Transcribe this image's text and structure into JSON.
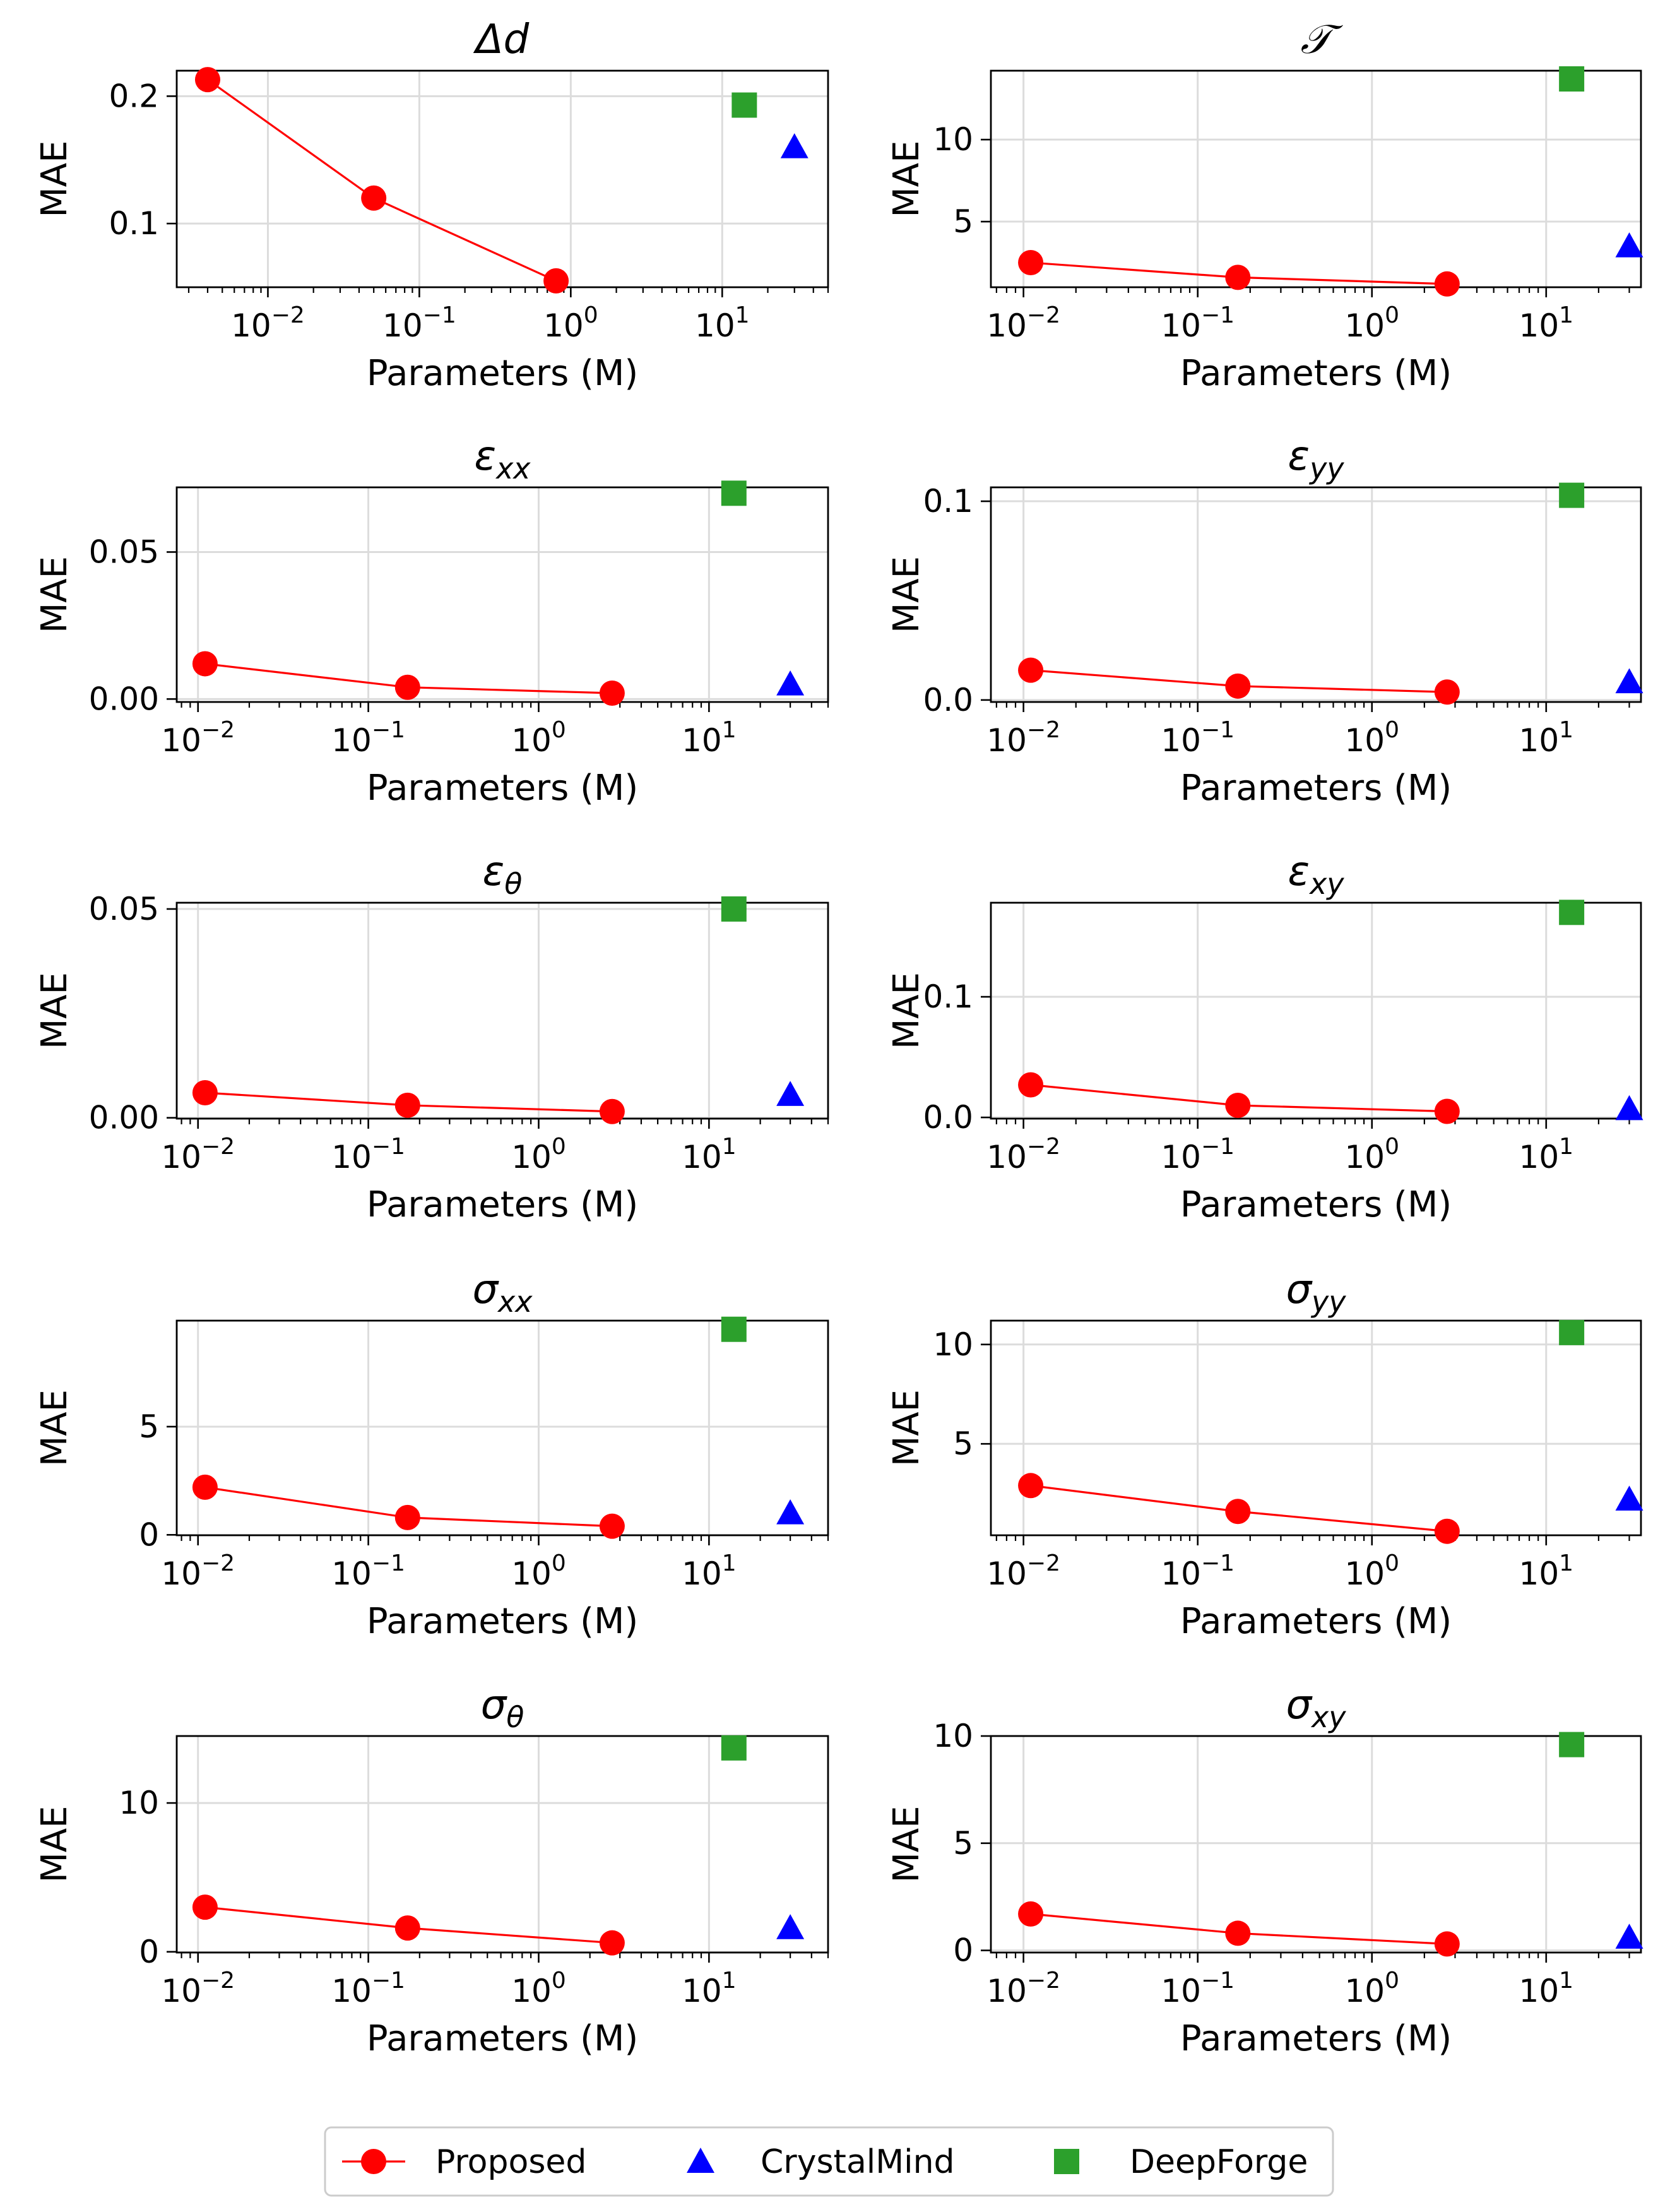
{
  "chart_data": {
    "type": "scatter",
    "legend": {
      "placement": "bottom-center",
      "entries": [
        {
          "name": "Proposed",
          "color": "#ff0000",
          "marker": "circle",
          "line": true
        },
        {
          "name": "CrystalMind",
          "color": "#0000ff",
          "marker": "triangle",
          "line": false
        },
        {
          "name": "DeepForge",
          "color": "#2ca02c",
          "marker": "square",
          "line": false
        }
      ]
    },
    "panels": [
      {
        "title_main": "Δd",
        "title_sub": "",
        "xlabel": "Parameters (M)",
        "ylabel": "MAE",
        "xscale": "log",
        "xlim": [
          0.0025,
          50
        ],
        "ylim": [
          0.05,
          0.22
        ],
        "yticks": [
          0.1,
          0.2
        ],
        "ytick_labels": [
          "0.1",
          "0.2"
        ],
        "proposed": {
          "x": [
            0.004,
            0.05,
            0.8
          ],
          "y": [
            0.213,
            0.12,
            0.055
          ]
        },
        "crystalmind": {
          "x": [
            30
          ],
          "y": [
            0.16
          ]
        },
        "deepforge": {
          "x": [
            14
          ],
          "y": [
            0.193
          ]
        }
      },
      {
        "title_main": "𝒯",
        "title_sub": "",
        "xlabel": "Parameters (M)",
        "ylabel": "MAE",
        "xscale": "log",
        "xlim": [
          0.0065,
          35
        ],
        "ylim": [
          1.0,
          14.2
        ],
        "yticks": [
          5,
          10
        ],
        "ytick_labels": [
          "5",
          "10"
        ],
        "proposed": {
          "x": [
            0.011,
            0.17,
            2.7
          ],
          "y": [
            2.5,
            1.6,
            1.2
          ]
        },
        "crystalmind": {
          "x": [
            30
          ],
          "y": [
            3.5
          ]
        },
        "deepforge": {
          "x": [
            14
          ],
          "y": [
            13.7
          ]
        }
      },
      {
        "title_main": "ε",
        "title_sub": "xx",
        "xlabel": "Parameters (M)",
        "ylabel": "MAE",
        "xscale": "log",
        "xlim": [
          0.0075,
          50
        ],
        "ylim": [
          -0.001,
          0.072
        ],
        "yticks": [
          0.0,
          0.05
        ],
        "ytick_labels": [
          "0.00",
          "0.05"
        ],
        "proposed": {
          "x": [
            0.011,
            0.17,
            2.7
          ],
          "y": [
            0.012,
            0.004,
            0.002
          ]
        },
        "crystalmind": {
          "x": [
            30
          ],
          "y": [
            0.005
          ]
        },
        "deepforge": {
          "x": [
            14
          ],
          "y": [
            0.07
          ]
        }
      },
      {
        "title_main": "ε",
        "title_sub": "yy",
        "xlabel": "Parameters (M)",
        "ylabel": "MAE",
        "xscale": "log",
        "xlim": [
          0.0065,
          35
        ],
        "ylim": [
          -0.001,
          0.107
        ],
        "yticks": [
          0.0,
          0.1
        ],
        "ytick_labels": [
          "0.0",
          "0.1"
        ],
        "proposed": {
          "x": [
            0.011,
            0.17,
            2.7
          ],
          "y": [
            0.015,
            0.007,
            0.004
          ]
        },
        "crystalmind": {
          "x": [
            30
          ],
          "y": [
            0.009
          ]
        },
        "deepforge": {
          "x": [
            14
          ],
          "y": [
            0.103
          ]
        }
      },
      {
        "title_main": "ε",
        "title_sub": "θ",
        "xlabel": "Parameters (M)",
        "ylabel": "MAE",
        "xscale": "log",
        "xlim": [
          0.0075,
          50
        ],
        "ylim": [
          -0.0002,
          0.0515
        ],
        "yticks": [
          0.0,
          0.05
        ],
        "ytick_labels": [
          "0.00",
          "0.05"
        ],
        "proposed": {
          "x": [
            0.011,
            0.17,
            2.7
          ],
          "y": [
            0.006,
            0.003,
            0.0015
          ]
        },
        "crystalmind": {
          "x": [
            30
          ],
          "y": [
            0.0055
          ]
        },
        "deepforge": {
          "x": [
            14
          ],
          "y": [
            0.05
          ]
        }
      },
      {
        "title_main": "ε",
        "title_sub": "xy",
        "xlabel": "Parameters (M)",
        "ylabel": "MAE",
        "xscale": "log",
        "xlim": [
          0.0065,
          35
        ],
        "ylim": [
          -0.001,
          0.178
        ],
        "yticks": [
          0.0,
          0.1
        ],
        "ytick_labels": [
          "0.0",
          "0.1"
        ],
        "proposed": {
          "x": [
            0.011,
            0.17,
            2.7
          ],
          "y": [
            0.027,
            0.01,
            0.005
          ]
        },
        "crystalmind": {
          "x": [
            30
          ],
          "y": [
            0.007
          ]
        },
        "deepforge": {
          "x": [
            14
          ],
          "y": [
            0.17
          ]
        }
      },
      {
        "title_main": "σ",
        "title_sub": "xx",
        "xlabel": "Parameters (M)",
        "ylabel": "MAE",
        "xscale": "log",
        "xlim": [
          0.0075,
          50
        ],
        "ylim": [
          -0.02,
          9.9
        ],
        "yticks": [
          0,
          5
        ],
        "ytick_labels": [
          "0",
          "5"
        ],
        "proposed": {
          "x": [
            0.011,
            0.17,
            2.7
          ],
          "y": [
            2.2,
            0.8,
            0.4
          ]
        },
        "crystalmind": {
          "x": [
            30
          ],
          "y": [
            1.0
          ]
        },
        "deepforge": {
          "x": [
            14
          ],
          "y": [
            9.5
          ]
        }
      },
      {
        "title_main": "σ",
        "title_sub": "yy",
        "xlabel": "Parameters (M)",
        "ylabel": "MAE",
        "xscale": "log",
        "xlim": [
          0.0065,
          35
        ],
        "ylim": [
          0.4,
          11.2
        ],
        "yticks": [
          5,
          10
        ],
        "ytick_labels": [
          "5",
          "10"
        ],
        "proposed": {
          "x": [
            0.011,
            0.17,
            2.7
          ],
          "y": [
            2.9,
            1.6,
            0.6
          ]
        },
        "crystalmind": {
          "x": [
            30
          ],
          "y": [
            2.2
          ]
        },
        "deepforge": {
          "x": [
            14
          ],
          "y": [
            10.6
          ]
        }
      },
      {
        "title_main": "σ",
        "title_sub": "θ",
        "xlabel": "Parameters (M)",
        "ylabel": "MAE",
        "xscale": "log",
        "xlim": [
          0.0075,
          50
        ],
        "ylim": [
          -0.05,
          14.5
        ],
        "yticks": [
          0,
          10
        ],
        "ytick_labels": [
          "0",
          "10"
        ],
        "proposed": {
          "x": [
            0.011,
            0.17,
            2.7
          ],
          "y": [
            3.0,
            1.6,
            0.6
          ]
        },
        "crystalmind": {
          "x": [
            30
          ],
          "y": [
            1.6
          ]
        },
        "deepforge": {
          "x": [
            14
          ],
          "y": [
            13.7
          ]
        }
      },
      {
        "title_main": "σ",
        "title_sub": "xy",
        "xlabel": "Parameters (M)",
        "ylabel": "MAE",
        "xscale": "log",
        "xlim": [
          0.0065,
          35
        ],
        "ylim": [
          -0.1,
          10.0
        ],
        "yticks": [
          0,
          5,
          10
        ],
        "ytick_labels": [
          "0",
          "5",
          "10"
        ],
        "proposed": {
          "x": [
            0.011,
            0.17,
            2.7
          ],
          "y": [
            1.7,
            0.8,
            0.3
          ]
        },
        "crystalmind": {
          "x": [
            30
          ],
          "y": [
            0.6
          ]
        },
        "deepforge": {
          "x": [
            14
          ],
          "y": [
            9.6
          ]
        }
      }
    ]
  }
}
